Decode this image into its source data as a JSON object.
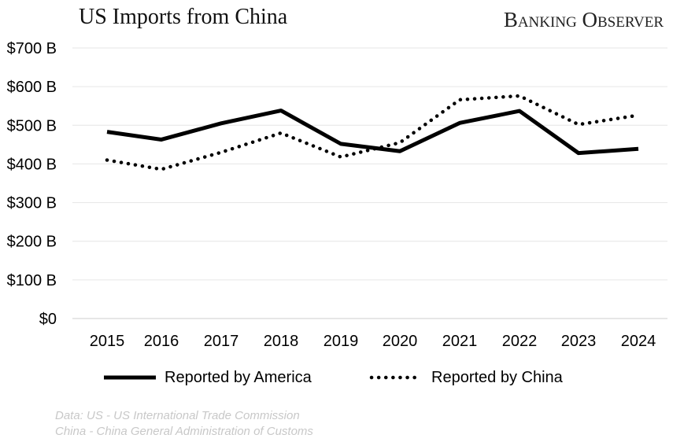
{
  "title": "US Imports from China",
  "brand": "Banking Observer",
  "source": {
    "line1": "Data: US - US International Trade Commission",
    "line2": "China - China General Administration of Customs"
  },
  "chart_data": {
    "type": "line",
    "categories": [
      "2015",
      "2016",
      "2017",
      "2018",
      "2019",
      "2020",
      "2021",
      "2022",
      "2023",
      "2024"
    ],
    "series": [
      {
        "name": "Reported by America",
        "values": [
          483,
          463,
          505,
          538,
          452,
          433,
          506,
          537,
          428,
          439
        ],
        "style": "solid",
        "color": "#000000"
      },
      {
        "name": "Reported by China",
        "values": [
          410,
          386,
          430,
          480,
          418,
          455,
          566,
          576,
          502,
          526
        ],
        "style": "dotted",
        "color": "#000000"
      }
    ],
    "ylim": [
      0,
      700
    ],
    "yticks": [
      "$0",
      "$100 B",
      "$200 B",
      "$300 B",
      "$400 B",
      "$500 B",
      "$600 B",
      "$700 B"
    ],
    "grid": true,
    "legend": "bottom"
  }
}
